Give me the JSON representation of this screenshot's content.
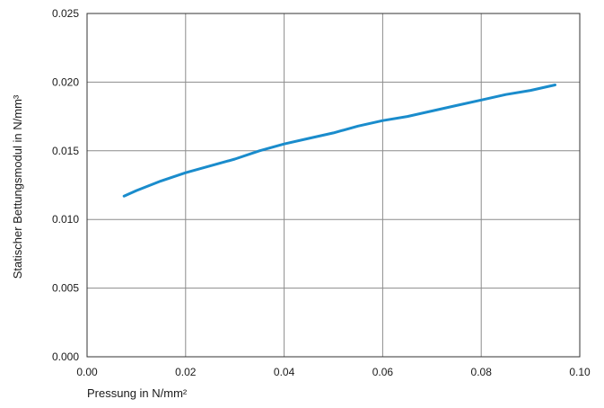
{
  "chart_data": {
    "type": "line",
    "title": "",
    "xlabel": "Pressung in N/mm²",
    "ylabel": "Statischer Bettungsmodul in N/mm³",
    "xlim": [
      0,
      0.1
    ],
    "ylim": [
      0,
      0.025
    ],
    "x_ticks": [
      "0.00",
      "0.02",
      "0.04",
      "0.06",
      "0.08",
      "0.10"
    ],
    "y_ticks": [
      "0.000",
      "0.005",
      "0.010",
      "0.015",
      "0.020",
      "0.025"
    ],
    "grid": true,
    "series": [
      {
        "color": "#1a8ccc",
        "x": [
          0.0075,
          0.01,
          0.015,
          0.02,
          0.025,
          0.03,
          0.035,
          0.04,
          0.045,
          0.05,
          0.055,
          0.06,
          0.065,
          0.07,
          0.075,
          0.08,
          0.085,
          0.09,
          0.095
        ],
        "y": [
          0.0117,
          0.0121,
          0.0128,
          0.0134,
          0.0139,
          0.0144,
          0.015,
          0.0155,
          0.0159,
          0.0163,
          0.0168,
          0.0172,
          0.0175,
          0.0179,
          0.0183,
          0.0187,
          0.0191,
          0.0194,
          0.0198
        ]
      }
    ]
  }
}
